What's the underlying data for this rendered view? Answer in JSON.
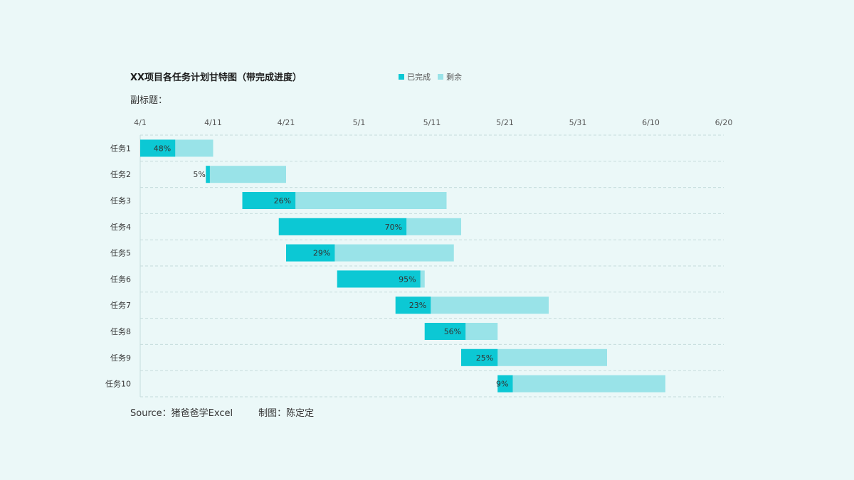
{
  "chart_data": {
    "type": "bar",
    "orientation": "horizontal-gantt",
    "title": "XX项目各任务计划甘特图（带完成进度）",
    "subtitle": "副标题：",
    "x_axis": {
      "start": "2024-04-01",
      "end": "2024-06-20",
      "tick_labels": [
        "4/1",
        "4/11",
        "4/21",
        "5/1",
        "5/11",
        "5/21",
        "5/31",
        "6/10",
        "6/20"
      ],
      "tick_dates": [
        "2024-04-01",
        "2024-04-11",
        "2024-04-21",
        "2024-05-01",
        "2024-05-11",
        "2024-05-21",
        "2024-05-31",
        "2024-06-10",
        "2024-06-20"
      ]
    },
    "legend": {
      "placement": "top-right",
      "items": [
        {
          "label": "已完成",
          "color": "#0cc8d4"
        },
        {
          "label": "剩余",
          "color": "#99e3e8"
        }
      ]
    },
    "grid": true,
    "categories": [
      "任务1",
      "任务2",
      "任务3",
      "任务4",
      "任务5",
      "任务6",
      "任务7",
      "任务8",
      "任务9",
      "任务10"
    ],
    "tasks": [
      {
        "name": "任务1",
        "start": "2024-04-01",
        "end": "2024-04-11",
        "progress": 0.48,
        "progress_label": "48%"
      },
      {
        "name": "任务2",
        "start": "2024-04-10",
        "end": "2024-04-21",
        "progress": 0.05,
        "progress_label": "5%"
      },
      {
        "name": "任务3",
        "start": "2024-04-15",
        "end": "2024-05-13",
        "progress": 0.26,
        "progress_label": "26%"
      },
      {
        "name": "任务4",
        "start": "2024-04-20",
        "end": "2024-05-15",
        "progress": 0.7,
        "progress_label": "70%"
      },
      {
        "name": "任务5",
        "start": "2024-04-21",
        "end": "2024-05-14",
        "progress": 0.29,
        "progress_label": "29%"
      },
      {
        "name": "任务6",
        "start": "2024-04-28",
        "end": "2024-05-10",
        "progress": 0.95,
        "progress_label": "95%"
      },
      {
        "name": "任务7",
        "start": "2024-05-06",
        "end": "2024-05-27",
        "progress": 0.23,
        "progress_label": "23%"
      },
      {
        "name": "任务8",
        "start": "2024-05-10",
        "end": "2024-05-20",
        "progress": 0.56,
        "progress_label": "56%"
      },
      {
        "name": "任务9",
        "start": "2024-05-15",
        "end": "2024-06-04",
        "progress": 0.25,
        "progress_label": "25%"
      },
      {
        "name": "任务10",
        "start": "2024-05-20",
        "end": "2024-06-12",
        "progress": 0.09,
        "progress_label": "9%"
      }
    ],
    "colors": {
      "completed": "#0cc8d4",
      "remaining": "#99e3e8",
      "grid": "#c6dcdc",
      "axis_text": "#555555",
      "label_text": "#333333"
    }
  },
  "footer": {
    "source": "Source：猪爸爸学Excel",
    "author": "制图：陈定定"
  }
}
